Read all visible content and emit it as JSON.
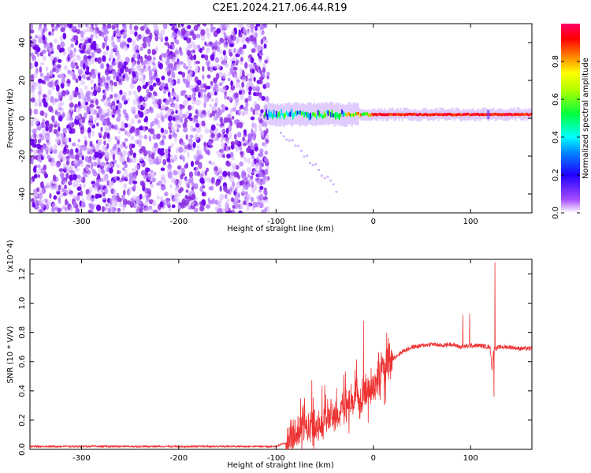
{
  "title": "C2E1.2024.217.06.44.R19",
  "chart_data": [
    {
      "type": "heatmap",
      "xlabel": "Height of straight line (km)",
      "ylabel": "Frequency (Hz)",
      "xlim": [
        -353,
        163
      ],
      "ylim": [
        -50,
        50
      ],
      "x_ticks": [
        -300,
        -200,
        -100,
        0,
        100
      ],
      "y_ticks": [
        -40,
        -20,
        0,
        20,
        40
      ],
      "noise_region_x": [
        -353,
        -108
      ],
      "signal_region_x": [
        -112,
        163
      ],
      "signal_center_freq_hz": 2,
      "colorbar": {
        "label": "Normalized spectral amplitude",
        "range": [
          0.0,
          1.0
        ],
        "ticks": [
          0.0,
          0.2,
          0.4,
          0.6,
          0.8
        ],
        "colormap": [
          "#ffffff",
          "#8a2be2",
          "#2200ff",
          "#00ffff",
          "#00ff00",
          "#ffff00",
          "#ff8000",
          "#ff0000",
          "#ff0060"
        ]
      }
    },
    {
      "type": "line",
      "xlabel": "Height of straight line (km)",
      "ylabel": "SNR (10 * V/V)",
      "y_multiplier": "(x10^4)",
      "xlim": [
        -353,
        163
      ],
      "ylim": [
        0,
        1.3
      ],
      "x_ticks": [
        -300,
        -200,
        -100,
        0,
        100
      ],
      "y_ticks": [
        0.0,
        0.2,
        0.4,
        0.6,
        0.8,
        1.0,
        1.2
      ],
      "line_color": "#ee3333",
      "series": [
        {
          "x": [
            -353,
            -100,
            -88,
            -80,
            -70,
            -60,
            -50,
            -40,
            -30,
            -20,
            -10,
            0,
            10,
            20,
            30,
            40,
            50,
            60,
            70,
            80,
            90,
            100,
            110,
            120,
            122,
            124,
            126,
            130,
            140,
            150,
            163
          ],
          "values": [
            0.02,
            0.02,
            0.05,
            0.12,
            0.16,
            0.17,
            0.2,
            0.24,
            0.28,
            0.33,
            0.38,
            0.45,
            0.55,
            0.62,
            0.67,
            0.7,
            0.71,
            0.72,
            0.71,
            0.72,
            0.7,
            0.71,
            0.71,
            0.7,
            0.55,
            0.7,
            0.69,
            0.7,
            0.7,
            0.69,
            0.69
          ]
        }
      ],
      "spikes": [
        {
          "x": -10,
          "y": 0.88
        },
        {
          "x": 92,
          "y": 0.92
        },
        {
          "x": 99,
          "y": 0.93
        },
        {
          "x": 125,
          "y": 1.28
        },
        {
          "x": 124,
          "y": 0.36
        }
      ]
    }
  ]
}
